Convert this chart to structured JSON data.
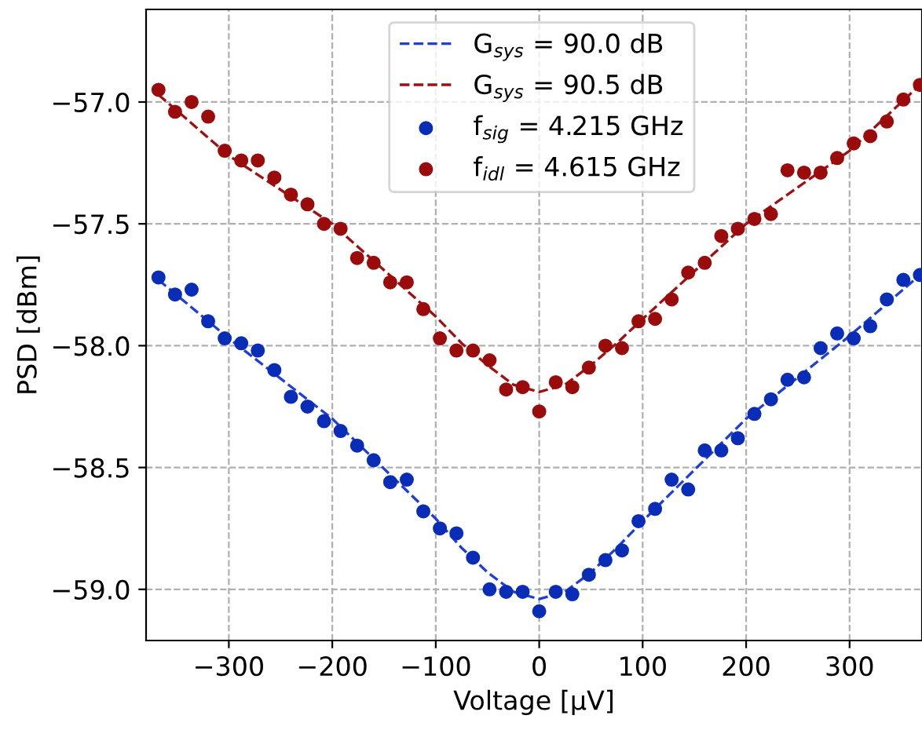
{
  "chart_data": {
    "type": "scatter",
    "xlabel": "Voltage [μV]",
    "ylabel": "PSD [dBm]",
    "x": [
      -368,
      -352,
      -336,
      -320,
      -304,
      -288,
      -272,
      -256,
      -240,
      -224,
      -208,
      -192,
      -176,
      -160,
      -144,
      -128,
      -112,
      -96,
      -80,
      -64,
      -48,
      -32,
      -16,
      0,
      16,
      32,
      48,
      64,
      80,
      96,
      112,
      128,
      144,
      160,
      176,
      192,
      208,
      224,
      240,
      256,
      272,
      288,
      304,
      320,
      336,
      352,
      368
    ],
    "series": [
      {
        "name": "G$_{sys}$ = 90.0 dB",
        "type": "line",
        "color": "#1f3fd6",
        "line_style": "dashed",
        "marker": "none",
        "x": [
          -368,
          -300,
          -200,
          -100,
          -75,
          -50,
          -25,
          0,
          25,
          50,
          75,
          100,
          200,
          300,
          368
        ],
        "values": [
          -57.73,
          -57.97,
          -58.3,
          -58.71,
          -58.83,
          -58.93,
          -59.01,
          -59.04,
          -59.01,
          -58.93,
          -58.83,
          -58.72,
          -58.3,
          -57.96,
          -57.71
        ]
      },
      {
        "name": "G$_{sys}$ = 90.5 dB",
        "type": "line",
        "color": "#a01010",
        "line_style": "dashed",
        "marker": "none",
        "x": [
          -368,
          -300,
          -200,
          -100,
          -75,
          -50,
          -25,
          0,
          25,
          50,
          75,
          100,
          200,
          300,
          368
        ],
        "values": [
          -56.97,
          -57.22,
          -57.5,
          -57.88,
          -57.99,
          -58.08,
          -58.16,
          -58.19,
          -58.16,
          -58.08,
          -57.99,
          -57.89,
          -57.5,
          -57.2,
          -56.93
        ]
      },
      {
        "name": "f$_{sig}$ = 4.215 GHz",
        "color": "#0a2db8",
        "marker": "circle",
        "values": [
          -57.72,
          -57.79,
          -57.77,
          -57.9,
          -57.97,
          -57.99,
          -58.02,
          -58.1,
          -58.21,
          -58.25,
          -58.31,
          -58.35,
          -58.41,
          -58.47,
          -58.56,
          -58.55,
          -58.68,
          -58.75,
          -58.77,
          -58.87,
          -59.0,
          -59.01,
          -59.01,
          -59.09,
          -59.01,
          -59.02,
          -58.94,
          -58.88,
          -58.84,
          -58.72,
          -58.67,
          -58.55,
          -58.59,
          -58.43,
          -58.43,
          -58.38,
          -58.28,
          -58.22,
          -58.14,
          -58.13,
          -58.01,
          -57.95,
          -57.97,
          -57.92,
          -57.81,
          -57.73,
          -57.71
        ]
      },
      {
        "name": "f$_{idl}$ = 4.615 GHz",
        "color": "#9a0c0c",
        "marker": "circle",
        "values": [
          -56.95,
          -57.04,
          -57.0,
          -57.06,
          -57.2,
          -57.24,
          -57.24,
          -57.31,
          -57.38,
          -57.42,
          -57.5,
          -57.52,
          -57.64,
          -57.66,
          -57.74,
          -57.74,
          -57.85,
          -57.97,
          -58.02,
          -58.02,
          -58.06,
          -58.18,
          -58.17,
          -58.27,
          -58.15,
          -58.17,
          -58.09,
          -58.0,
          -58.01,
          -57.9,
          -57.89,
          -57.81,
          -57.7,
          -57.66,
          -57.55,
          -57.52,
          -57.48,
          -57.46,
          -57.28,
          -57.29,
          -57.29,
          -57.23,
          -57.17,
          -57.14,
          -57.08,
          -56.99,
          -56.93
        ]
      }
    ],
    "xlim": [
      -380,
      370
    ],
    "xticks": [
      {
        "value": -300,
        "label": "−300"
      },
      {
        "value": -200,
        "label": "−200"
      },
      {
        "value": -100,
        "label": "−100"
      },
      0,
      100,
      200,
      300
    ],
    "ylim": [
      -59.21,
      -56.62
    ],
    "yticks": [
      {
        "value": -59.0,
        "label": "−59.0"
      },
      {
        "value": -58.5,
        "label": "−58.5"
      },
      {
        "value": -58.0,
        "label": "−58.0"
      },
      {
        "value": -57.5,
        "label": "−57.5"
      },
      {
        "value": -57.0,
        "label": "−57.0"
      }
    ],
    "grid": true,
    "legend": "top"
  }
}
